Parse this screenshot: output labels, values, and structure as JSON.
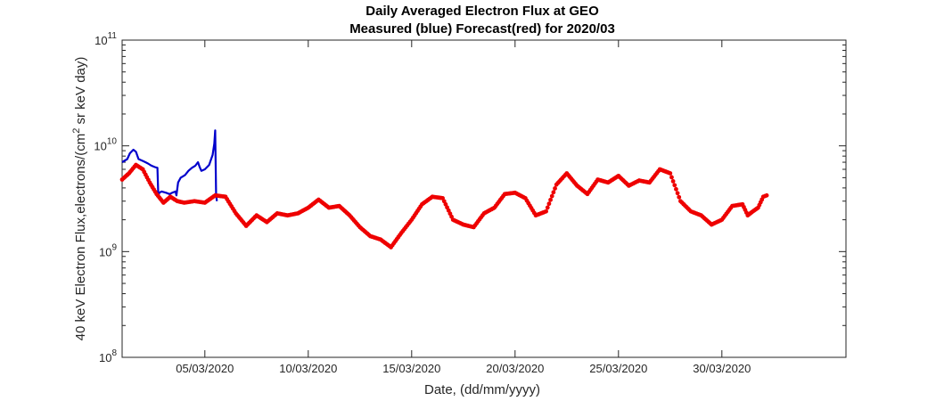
{
  "chart_data": {
    "type": "line",
    "title": "Daily Averaged Electron Flux at GEO",
    "subtitle": "Measured (blue) Forecast(red) for 2020/03",
    "xlabel": "Date, (dd/mm/yyyy)",
    "ylabel": {
      "prefix": "40 keV Electron Flux,electrons/(cm",
      "superscript": "2",
      "suffix": " sr keV day)"
    },
    "y_scale": "log",
    "ylim": [
      100000000.0,
      100000000000.0
    ],
    "xlim": [
      "01/03/2020",
      "05/04/2020"
    ],
    "x_ticks": [
      "05/03/2020",
      "10/03/2020",
      "15/03/2020",
      "20/03/2020",
      "25/03/2020",
      "30/03/2020"
    ],
    "y_ticks": [
      {
        "base": "10",
        "exp": "8",
        "value": 100000000.0
      },
      {
        "base": "10",
        "exp": "9",
        "value": 1000000000.0
      },
      {
        "base": "10",
        "exp": "10",
        "value": 10000000000.0
      },
      {
        "base": "10",
        "exp": "11",
        "value": 100000000000.0
      }
    ],
    "grid": false,
    "colors": {
      "measured": "#0000cc",
      "forecast": "#ee0000",
      "axis": "#262626"
    },
    "series": [
      {
        "key": "measured",
        "style": "line",
        "x": [
          "01/03/2020 00:00",
          "01/03/2020 06:00",
          "01/03/2020 09:00",
          "01/03/2020 13:00",
          "01/03/2020 16:00",
          "01/03/2020 19:00",
          "02/03/2020 00:00",
          "02/03/2020 03:00",
          "02/03/2020 06:00",
          "02/03/2020 10:00",
          "02/03/2020 14:00",
          "02/03/2020 17:00",
          "02/03/2020 18:00",
          "02/03/2020 19:00",
          "02/03/2020 22:00",
          "03/03/2020 03:00",
          "03/03/2020 07:00",
          "03/03/2020 10:00",
          "03/03/2020 14:00",
          "03/03/2020 15:00",
          "03/03/2020 17:00",
          "03/03/2020 20:00",
          "04/03/2020 01:00",
          "04/03/2020 05:00",
          "04/03/2020 09:00",
          "04/03/2020 13:00",
          "04/03/2020 16:00",
          "04/03/2020 18:00",
          "04/03/2020 20:00",
          "05/03/2020 00:00",
          "05/03/2020 05:00",
          "05/03/2020 09:00",
          "05/03/2020 11:00",
          "05/03/2020 12:00",
          "05/03/2020 13:00",
          "05/03/2020 14:00"
        ],
        "y": [
          7000000000.0,
          7500000000.0,
          8500000000.0,
          9200000000.0,
          8800000000.0,
          7500000000.0,
          7200000000.0,
          7000000000.0,
          6800000000.0,
          6500000000.0,
          6300000000.0,
          6200000000.0,
          3300000000.0,
          3600000000.0,
          3700000000.0,
          3600000000.0,
          3500000000.0,
          3600000000.0,
          3700000000.0,
          3400000000.0,
          4500000000.0,
          5000000000.0,
          5300000000.0,
          5800000000.0,
          6200000000.0,
          6500000000.0,
          7000000000.0,
          6300000000.0,
          5800000000.0,
          6000000000.0,
          6600000000.0,
          8200000000.0,
          10500000000.0,
          14000000000.0,
          3500000000.0,
          3000000000.0
        ]
      },
      {
        "key": "forecast",
        "style": "markers",
        "x": [
          "01/03/2020 00:00",
          "01/03/2020 08:00",
          "01/03/2020 16:00",
          "02/03/2020 00:00",
          "02/03/2020 08:00",
          "02/03/2020 16:00",
          "03/03/2020 00:00",
          "03/03/2020 08:00",
          "03/03/2020 16:00",
          "04/03/2020 00:00",
          "04/03/2020 12:00",
          "05/03/2020 00:00",
          "05/03/2020 12:00",
          "06/03/2020 00:00",
          "06/03/2020 12:00",
          "07/03/2020 00:00",
          "07/03/2020 12:00",
          "08/03/2020 00:00",
          "08/03/2020 12:00",
          "09/03/2020 00:00",
          "09/03/2020 12:00",
          "10/03/2020 00:00",
          "10/03/2020 12:00",
          "11/03/2020 00:00",
          "11/03/2020 12:00",
          "12/03/2020 00:00",
          "12/03/2020 12:00",
          "13/03/2020 00:00",
          "13/03/2020 12:00",
          "14/03/2020 00:00",
          "14/03/2020 12:00",
          "15/03/2020 00:00",
          "15/03/2020 12:00",
          "16/03/2020 00:00",
          "16/03/2020 12:00",
          "17/03/2020 00:00",
          "17/03/2020 12:00",
          "18/03/2020 00:00",
          "18/03/2020 12:00",
          "19/03/2020 00:00",
          "19/03/2020 12:00",
          "20/03/2020 00:00",
          "20/03/2020 12:00",
          "21/03/2020 00:00",
          "21/03/2020 12:00",
          "22/03/2020 00:00",
          "22/03/2020 12:00",
          "23/03/2020 00:00",
          "23/03/2020 12:00",
          "24/03/2020 00:00",
          "24/03/2020 12:00",
          "25/03/2020 00:00",
          "25/03/2020 12:00",
          "26/03/2020 00:00",
          "26/03/2020 12:00",
          "27/03/2020 00:00",
          "27/03/2020 12:00",
          "28/03/2020 00:00",
          "28/03/2020 12:00",
          "29/03/2020 00:00",
          "29/03/2020 12:00",
          "30/03/2020 00:00",
          "30/03/2020 12:00",
          "31/03/2020 00:00",
          "31/03/2020 06:00",
          "31/03/2020 12:00",
          "31/03/2020 18:00",
          "01/04/2020 00:00",
          "01/04/2020 04:00"
        ],
        "y": [
          4800000000.0,
          5500000000.0,
          6600000000.0,
          6000000000.0,
          4500000000.0,
          3500000000.0,
          2900000000.0,
          3300000000.0,
          3000000000.0,
          2900000000.0,
          3000000000.0,
          2900000000.0,
          3400000000.0,
          3300000000.0,
          2300000000.0,
          1750000000.0,
          2200000000.0,
          1900000000.0,
          2300000000.0,
          2200000000.0,
          2300000000.0,
          2600000000.0,
          3100000000.0,
          2600000000.0,
          2700000000.0,
          2200000000.0,
          1700000000.0,
          1400000000.0,
          1300000000.0,
          1100000000.0,
          1500000000.0,
          2000000000.0,
          2800000000.0,
          3300000000.0,
          3200000000.0,
          2000000000.0,
          1800000000.0,
          1700000000.0,
          2300000000.0,
          2600000000.0,
          3500000000.0,
          3600000000.0,
          3200000000.0,
          2200000000.0,
          2400000000.0,
          4300000000.0,
          5500000000.0,
          4200000000.0,
          3500000000.0,
          4800000000.0,
          4500000000.0,
          5200000000.0,
          4200000000.0,
          4700000000.0,
          4500000000.0,
          6000000000.0,
          5500000000.0,
          3000000000.0,
          2400000000.0,
          2200000000.0,
          1800000000.0,
          2000000000.0,
          2700000000.0,
          2800000000.0,
          2200000000.0,
          2400000000.0,
          2600000000.0,
          3300000000.0,
          3400000000.0
        ]
      }
    ]
  }
}
